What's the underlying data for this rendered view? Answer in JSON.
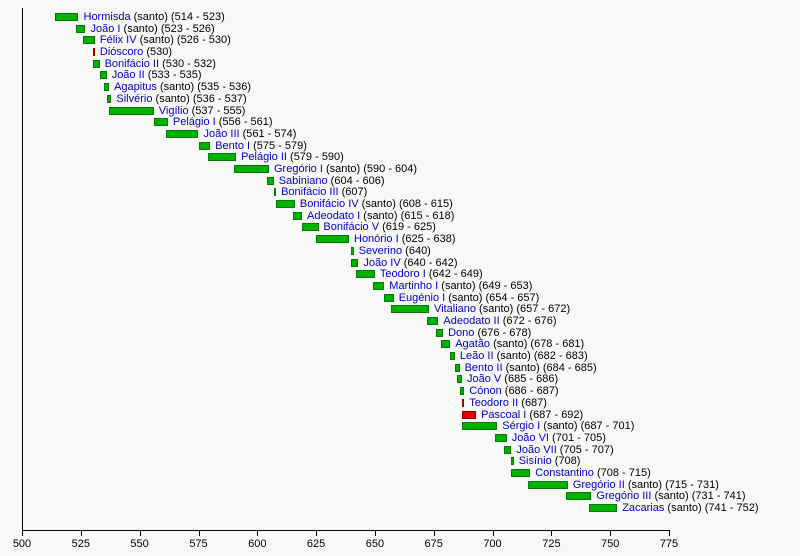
{
  "chart_data": {
    "type": "timeline",
    "xlabel": "",
    "ylabel": "",
    "axis": {
      "min": 500,
      "max": 775,
      "tick_interval": 25,
      "ticks": [
        500,
        525,
        550,
        575,
        600,
        625,
        650,
        675,
        700,
        725,
        750,
        775
      ]
    },
    "colors": {
      "background": "#f8f8f6",
      "reign_bar": "#00b200",
      "reign_bar_border": "#067a06",
      "antipope_bar": "#e00000",
      "antipope_bar_border": "#970000",
      "name_link": "#0000cc",
      "text": "#000000",
      "axis": "#000000"
    },
    "santo_label": "(santo)",
    "popes": [
      {
        "name": "Hormisda",
        "santo": true,
        "start": 514,
        "end": 523,
        "years_label": "514 - 523",
        "color": "green"
      },
      {
        "name": "João I",
        "santo": true,
        "start": 523,
        "end": 526,
        "years_label": "523 - 526",
        "color": "green"
      },
      {
        "name": "Félix IV",
        "santo": true,
        "start": 526,
        "end": 530,
        "years_label": "526 - 530",
        "color": "green"
      },
      {
        "name": "Dióscoro",
        "santo": false,
        "start": 530,
        "end": 530,
        "years_label": "530",
        "color": "red"
      },
      {
        "name": "Bonifácio II",
        "santo": false,
        "start": 530,
        "end": 532,
        "years_label": "530 - 532",
        "color": "green"
      },
      {
        "name": "João II",
        "santo": false,
        "start": 533,
        "end": 535,
        "years_label": "533 - 535",
        "color": "green"
      },
      {
        "name": "Agapitus",
        "santo": true,
        "start": 535,
        "end": 536,
        "years_label": "535 - 536",
        "color": "green"
      },
      {
        "name": "Silvério",
        "santo": true,
        "start": 536,
        "end": 537,
        "years_label": "536 - 537",
        "color": "green"
      },
      {
        "name": "Vigílio",
        "santo": false,
        "start": 537,
        "end": 555,
        "years_label": "537 - 555",
        "color": "green"
      },
      {
        "name": "Pelágio I",
        "santo": false,
        "start": 556,
        "end": 561,
        "years_label": "556 - 561",
        "color": "green"
      },
      {
        "name": "João III",
        "santo": false,
        "start": 561,
        "end": 574,
        "years_label": "561 - 574",
        "color": "green"
      },
      {
        "name": "Bento I",
        "santo": false,
        "start": 575,
        "end": 579,
        "years_label": "575 - 579",
        "color": "green"
      },
      {
        "name": "Pelágio II",
        "santo": false,
        "start": 579,
        "end": 590,
        "years_label": "579 - 590",
        "color": "green"
      },
      {
        "name": "Gregório I",
        "santo": true,
        "start": 590,
        "end": 604,
        "years_label": "590 - 604",
        "color": "green"
      },
      {
        "name": "Sabiniano",
        "santo": false,
        "start": 604,
        "end": 606,
        "years_label": "604 - 606",
        "color": "green"
      },
      {
        "name": "Bonifácio III",
        "santo": false,
        "start": 607,
        "end": 607,
        "years_label": "607",
        "color": "green"
      },
      {
        "name": "Bonifácio IV",
        "santo": true,
        "start": 608,
        "end": 615,
        "years_label": "608 - 615",
        "color": "green"
      },
      {
        "name": "Adeodato I",
        "santo": true,
        "start": 615,
        "end": 618,
        "years_label": "615 - 618",
        "color": "green"
      },
      {
        "name": "Bonifácio V",
        "santo": false,
        "start": 619,
        "end": 625,
        "years_label": "619 - 625",
        "color": "green"
      },
      {
        "name": "Honório I",
        "santo": false,
        "start": 625,
        "end": 638,
        "years_label": "625 - 638",
        "color": "green"
      },
      {
        "name": "Severino",
        "santo": false,
        "start": 640,
        "end": 640,
        "years_label": "640",
        "color": "green"
      },
      {
        "name": "João IV",
        "santo": false,
        "start": 640,
        "end": 642,
        "years_label": "640 - 642",
        "color": "green"
      },
      {
        "name": "Teodoro I",
        "santo": false,
        "start": 642,
        "end": 649,
        "years_label": "642 - 649",
        "color": "green"
      },
      {
        "name": "Martinho I",
        "santo": true,
        "start": 649,
        "end": 653,
        "years_label": "649 - 653",
        "color": "green"
      },
      {
        "name": "Eugénio I",
        "santo": true,
        "start": 654,
        "end": 657,
        "years_label": "654 - 657",
        "color": "green"
      },
      {
        "name": "Vitaliano",
        "santo": true,
        "start": 657,
        "end": 672,
        "years_label": "657 - 672",
        "color": "green"
      },
      {
        "name": "Adeodato II",
        "santo": false,
        "start": 672,
        "end": 676,
        "years_label": "672 - 676",
        "color": "green"
      },
      {
        "name": "Dono",
        "santo": false,
        "start": 676,
        "end": 678,
        "years_label": "676 - 678",
        "color": "green"
      },
      {
        "name": "Agatão",
        "santo": true,
        "start": 678,
        "end": 681,
        "years_label": "678 - 681",
        "color": "green"
      },
      {
        "name": "Leão II",
        "santo": true,
        "start": 682,
        "end": 683,
        "years_label": "682 - 683",
        "color": "green"
      },
      {
        "name": "Bento II",
        "santo": true,
        "start": 684,
        "end": 685,
        "years_label": "684 - 685",
        "color": "green"
      },
      {
        "name": "João V",
        "santo": false,
        "start": 685,
        "end": 686,
        "years_label": "685 - 686",
        "color": "green"
      },
      {
        "name": "Cónon",
        "santo": false,
        "start": 686,
        "end": 687,
        "years_label": "686 - 687",
        "color": "green"
      },
      {
        "name": "Teodoro II",
        "santo": false,
        "start": 687,
        "end": 687,
        "years_label": "687",
        "color": "red"
      },
      {
        "name": "Pascoal I",
        "santo": false,
        "start": 687,
        "end": 692,
        "years_label": "687 - 692",
        "color": "red"
      },
      {
        "name": "Sérgio I",
        "santo": true,
        "start": 687,
        "end": 701,
        "years_label": "687 - 701",
        "color": "green"
      },
      {
        "name": "João VI",
        "santo": false,
        "start": 701,
        "end": 705,
        "years_label": "701 - 705",
        "color": "green"
      },
      {
        "name": "João VII",
        "santo": false,
        "start": 705,
        "end": 707,
        "years_label": "705 - 707",
        "color": "green"
      },
      {
        "name": "Sisínio",
        "santo": false,
        "start": 708,
        "end": 708,
        "years_label": "708",
        "color": "green"
      },
      {
        "name": "Constantino",
        "santo": false,
        "start": 708,
        "end": 715,
        "years_label": "708 - 715",
        "color": "green"
      },
      {
        "name": "Gregório II",
        "santo": true,
        "start": 715,
        "end": 731,
        "years_label": "715 - 731",
        "color": "green"
      },
      {
        "name": "Gregório III",
        "santo": true,
        "start": 731,
        "end": 741,
        "years_label": "731 - 741",
        "color": "green"
      },
      {
        "name": "Zacarias",
        "santo": true,
        "start": 741,
        "end": 752,
        "years_label": "741 - 752",
        "color": "green"
      }
    ]
  }
}
